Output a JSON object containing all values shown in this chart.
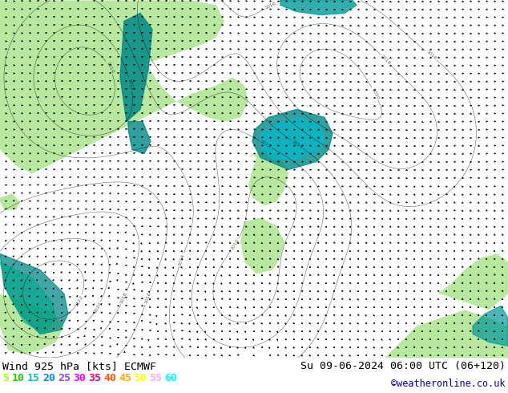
{
  "title_left": "Wind 925 hPa [kts] ECMWF",
  "title_right": "Su 09-06-2024 06:00 UTC (06+120)",
  "credit": "©weatheronline.co.uk",
  "legend_values": [
    "5",
    "10",
    "15",
    "20",
    "25",
    "30",
    "35",
    "40",
    "45",
    "50",
    "55",
    "60"
  ],
  "legend_colors": [
    "#aaff00",
    "#00dd00",
    "#00ccaa",
    "#0088ff",
    "#8844ff",
    "#ff00ff",
    "#ff0066",
    "#ff4400",
    "#ffaa00",
    "#ffff00",
    "#ffaaff",
    "#00ffff"
  ],
  "bg_color": "#ffffff",
  "land_color": "#b8e8a0",
  "sea_color": "#f0f0f0",
  "teal_color": "#00aaaa",
  "fig_width": 6.34,
  "fig_height": 4.9,
  "dpi": 100
}
